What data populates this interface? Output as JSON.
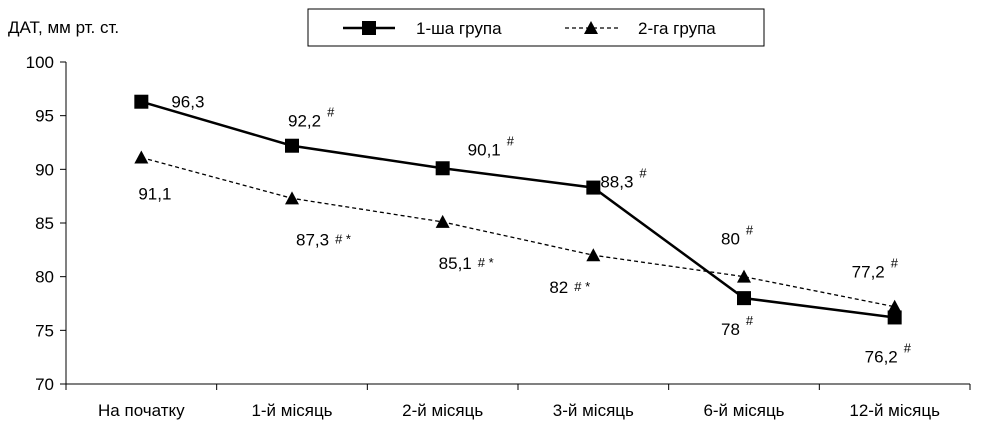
{
  "chart_data": {
    "type": "line",
    "ylabel": "ДАТ, мм рт. ст.",
    "xlabel": "",
    "ylim": [
      70,
      100
    ],
    "yticks": [
      70,
      75,
      80,
      85,
      90,
      95,
      100
    ],
    "categories": [
      "На початку",
      "1-й місяць",
      "2-й місяць",
      "3-й місяць",
      "6-й місяць",
      "12-й місяць"
    ],
    "legend_position": "top-center",
    "grid": false,
    "series": [
      {
        "name": "1-ша група",
        "line_style": "solid",
        "marker": "square",
        "color": "#000000",
        "values": [
          96.3,
          92.2,
          90.1,
          88.3,
          78,
          76.2
        ],
        "labels": [
          "96,3",
          "92,2",
          "90,1",
          "88,3",
          "78",
          "76,2"
        ],
        "marks": [
          "",
          "#",
          "#",
          "#",
          "#",
          "#"
        ]
      },
      {
        "name": "2-га група",
        "line_style": "dashed",
        "marker": "triangle",
        "color": "#000000",
        "values": [
          91.1,
          87.3,
          85.1,
          82,
          80,
          77.2
        ],
        "labels": [
          "91,1",
          "87,3",
          "85,1",
          "82",
          "80",
          "77,2"
        ],
        "marks": [
          "",
          "# *",
          "# *",
          "# *",
          "#",
          "#"
        ]
      }
    ]
  }
}
